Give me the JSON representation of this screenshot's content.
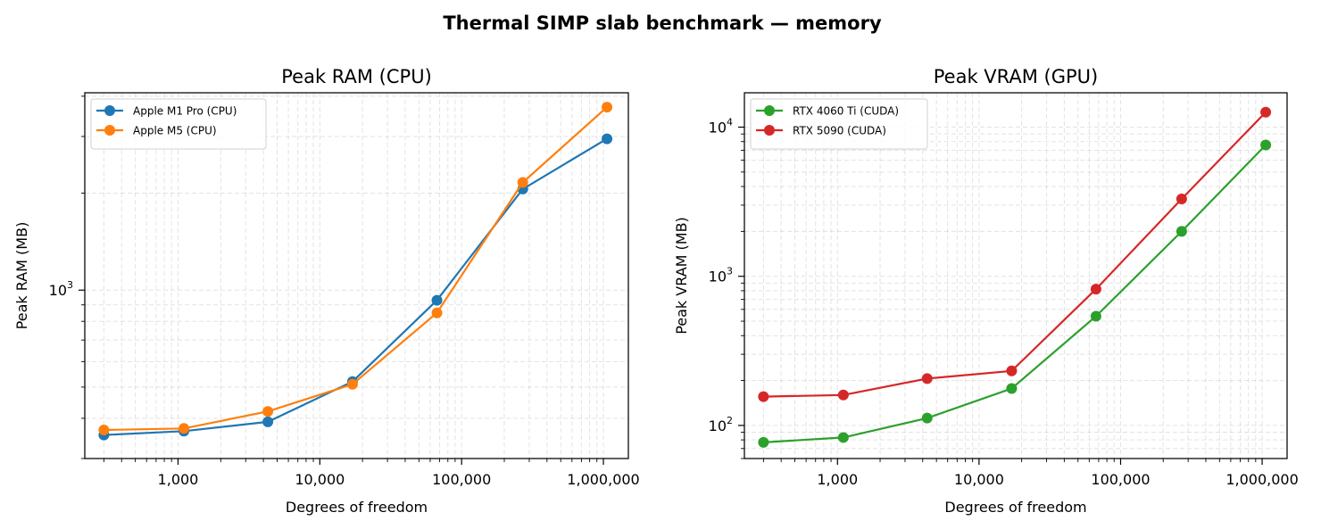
{
  "figure": {
    "title": "Thermal SIMP slab benchmark — memory"
  },
  "chart_data": [
    {
      "type": "line",
      "title": "Peak RAM (CPU)",
      "xlabel": "Degrees of freedom",
      "ylabel": "Peak RAM (MB)",
      "xscale": "log",
      "yscale": "log",
      "xlim": [
        220,
        1500000
      ],
      "ylim": [
        300,
        4100
      ],
      "xticks": [
        {
          "value": 1000,
          "label": "1,000"
        },
        {
          "value": 10000,
          "label": "10,000"
        },
        {
          "value": 100000,
          "label": "100,000"
        },
        {
          "value": 1000000,
          "label": "1,000,000"
        }
      ],
      "yticks": [
        {
          "value": 1000,
          "base": "10",
          "exp": "3"
        }
      ],
      "grid": true,
      "legend_position": "top-left",
      "x": [
        300,
        1100,
        4300,
        17000,
        67000,
        270000,
        1060000
      ],
      "series": [
        {
          "name": "Apple M1 Pro (CPU)",
          "color": "#1f77b4",
          "values": [
            355,
            365,
            390,
            520,
            930,
            2060,
            2950
          ]
        },
        {
          "name": "Apple M5 (CPU)",
          "color": "#ff7f0e",
          "values": [
            368,
            372,
            420,
            510,
            850,
            2160,
            3700
          ]
        }
      ]
    },
    {
      "type": "line",
      "title": "Peak VRAM (GPU)",
      "xlabel": "Degrees of freedom",
      "ylabel": "Peak VRAM (MB)",
      "xscale": "log",
      "yscale": "log",
      "xlim": [
        220,
        1500000
      ],
      "ylim": [
        60,
        17000
      ],
      "xticks": [
        {
          "value": 1000,
          "label": "1,000"
        },
        {
          "value": 10000,
          "label": "10,000"
        },
        {
          "value": 100000,
          "label": "100,000"
        },
        {
          "value": 1000000,
          "label": "1,000,000"
        }
      ],
      "yticks": [
        {
          "value": 100,
          "base": "10",
          "exp": "2"
        },
        {
          "value": 1000,
          "base": "10",
          "exp": "3"
        },
        {
          "value": 10000,
          "base": "10",
          "exp": "4"
        }
      ],
      "grid": true,
      "legend_position": "top-left",
      "x": [
        300,
        1100,
        4300,
        17000,
        67000,
        270000,
        1060000
      ],
      "series": [
        {
          "name": "RTX 4060 Ti (CUDA)",
          "color": "#2ca02c",
          "values": [
            77,
            83,
            112,
            177,
            540,
            2000,
            7600
          ]
        },
        {
          "name": "RTX 5090 (CUDA)",
          "color": "#d62728",
          "values": [
            156,
            160,
            206,
            232,
            820,
            3300,
            12600
          ]
        }
      ]
    }
  ]
}
